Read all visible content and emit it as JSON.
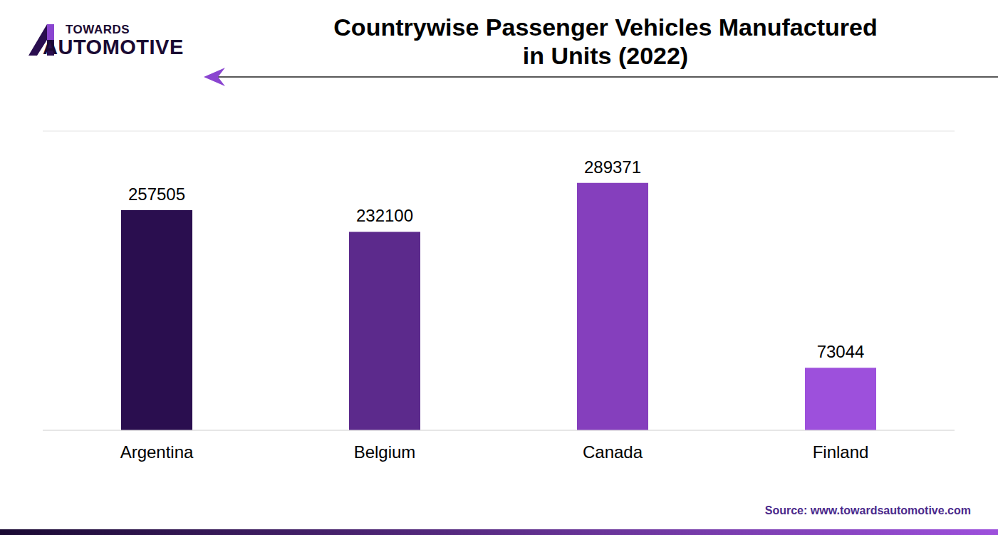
{
  "chart_data": {
    "type": "bar",
    "title": "Countrywise Passenger Vehicles Manufactured\nin Units (2022)",
    "categories": [
      "Argentina",
      "Belgium",
      "Canada",
      "Finland"
    ],
    "values": [
      257505,
      232100,
      289371,
      73044
    ],
    "colors": [
      "#2a0e4f",
      "#5c2a8c",
      "#853fbd",
      "#9d50dc"
    ],
    "ylim": [
      0,
      350000
    ],
    "yticks": [
      0,
      50000,
      100000,
      150000,
      200000,
      250000,
      300000,
      350000
    ],
    "grid": true,
    "data_labels": true,
    "tick_labels": "x",
    "annotations": [
      "TOWARDS",
      "AUTOMOTIVE"
    ],
    "source": "Source: www.towardsautomotive.com"
  }
}
